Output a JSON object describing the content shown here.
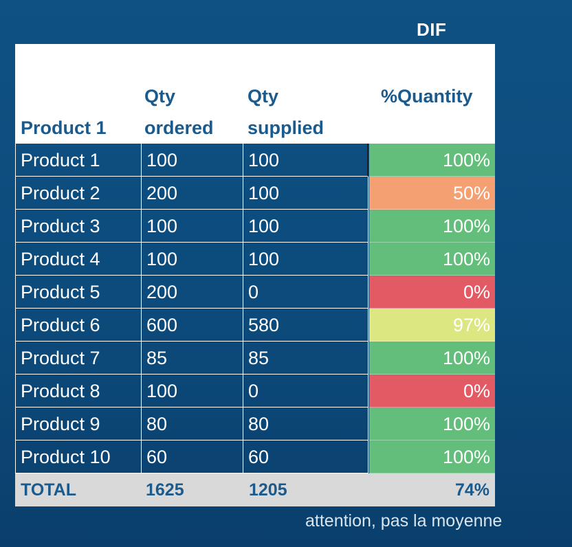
{
  "title": "DIF",
  "header": {
    "product": "Product 1",
    "ordered_line1": "Qty",
    "ordered_line2": "ordered",
    "supplied_line1": "Qty",
    "supplied_line2": "supplied",
    "pct": "%Quantity"
  },
  "colors": {
    "green": "#63be7b",
    "orange": "#f4a072",
    "red": "#e15a64",
    "yellow": "#dde781",
    "cell_bg": "#0f5183",
    "total_bg": "#d9d9d9"
  },
  "rows": [
    {
      "product": "Product 1",
      "ordered": "100",
      "supplied": "100",
      "pct": "100%",
      "color": "#63be7b"
    },
    {
      "product": "Product 2",
      "ordered": "200",
      "supplied": "100",
      "pct": "50%",
      "color": "#f4a072"
    },
    {
      "product": "Product 3",
      "ordered": "100",
      "supplied": "100",
      "pct": "100%",
      "color": "#63be7b"
    },
    {
      "product": "Product 4",
      "ordered": "100",
      "supplied": "100",
      "pct": "100%",
      "color": "#63be7b"
    },
    {
      "product": "Product 5",
      "ordered": "200",
      "supplied": "0",
      "pct": "0%",
      "color": "#e15a64"
    },
    {
      "product": "Product 6",
      "ordered": "600",
      "supplied": "580",
      "pct": "97%",
      "color": "#dde781"
    },
    {
      "product": "Product 7",
      "ordered": "85",
      "supplied": "85",
      "pct": "100%",
      "color": "#63be7b"
    },
    {
      "product": "Product 8",
      "ordered": "100",
      "supplied": "0",
      "pct": "0%",
      "color": "#e15a64"
    },
    {
      "product": "Product 9",
      "ordered": "80",
      "supplied": "80",
      "pct": "100%",
      "color": "#63be7b"
    },
    {
      "product": "Product 10",
      "ordered": "60",
      "supplied": "60",
      "pct": "100%",
      "color": "#63be7b"
    }
  ],
  "total": {
    "label": "TOTAL",
    "ordered": "1625",
    "supplied": "1205",
    "pct": "74%"
  },
  "note": "attention, pas la moyenne"
}
